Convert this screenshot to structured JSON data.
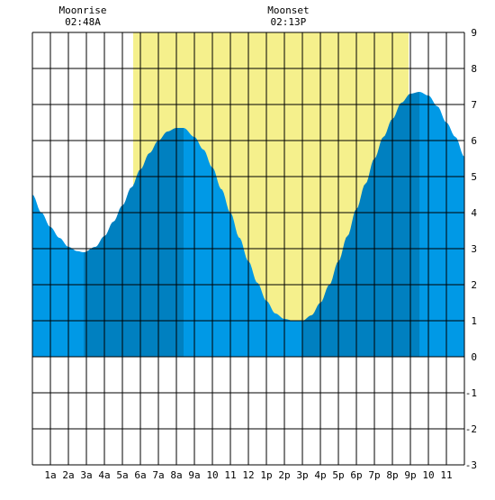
{
  "chart_data": {
    "type": "area",
    "title": "",
    "xlabel": "",
    "ylabel": "",
    "xlim": [
      0,
      24
    ],
    "ylim": [
      -3,
      9
    ],
    "x_tick_labels": [
      "1a",
      "2a",
      "3a",
      "4a",
      "5a",
      "6a",
      "7a",
      "8a",
      "9a",
      "10",
      "11",
      "12",
      "1p",
      "2p",
      "3p",
      "4p",
      "5p",
      "6p",
      "7p",
      "8p",
      "9p",
      "10",
      "11"
    ],
    "y_tick_labels": [
      "-3",
      "-2",
      "-1",
      "0",
      "1",
      "2",
      "3",
      "4",
      "5",
      "6",
      "7",
      "8",
      "9"
    ],
    "grid": true,
    "daylight_hours": [
      5.6,
      20.9
    ],
    "annotations": [
      {
        "label": "Moonrise",
        "time": "02:48A",
        "hour": 2.8
      },
      {
        "label": "Moonset",
        "time": "02:13P",
        "hour": 14.22
      }
    ],
    "tide_extremes": [
      {
        "type": "low",
        "hour": 2.85,
        "height": 2.9
      },
      {
        "type": "high",
        "hour": 8.4,
        "height": 6.35
      },
      {
        "type": "low",
        "hour": 15.0,
        "height": 1.0
      },
      {
        "type": "high",
        "hour": 21.5,
        "height": 7.35
      }
    ],
    "series": [
      {
        "x": [
          0,
          0.5,
          1,
          1.5,
          2,
          2.5,
          2.85,
          3.5,
          4,
          4.5,
          5,
          5.5,
          6,
          6.5,
          7,
          7.5,
          8,
          8.4,
          9,
          9.5,
          10,
          10.5,
          11,
          11.5,
          12,
          12.5,
          13,
          13.5,
          14,
          14.5,
          15,
          15.5,
          16,
          16.5,
          17,
          17.5,
          18,
          18.5,
          19,
          19.5,
          20,
          20.5,
          21,
          21.5,
          22,
          22.5,
          23,
          23.5,
          24
        ],
        "y": [
          4.5,
          4.0,
          3.6,
          3.3,
          3.05,
          2.93,
          2.9,
          3.05,
          3.35,
          3.75,
          4.2,
          4.7,
          5.2,
          5.65,
          6.0,
          6.25,
          6.35,
          6.35,
          6.1,
          5.75,
          5.25,
          4.65,
          4.0,
          3.3,
          2.65,
          2.05,
          1.55,
          1.2,
          1.05,
          1.0,
          1.0,
          1.15,
          1.5,
          2.0,
          2.65,
          3.35,
          4.1,
          4.8,
          5.5,
          6.1,
          6.6,
          7.05,
          7.3,
          7.35,
          7.25,
          6.95,
          6.5,
          6.1,
          5.55
        ]
      }
    ],
    "colors": {
      "daylight": "#f5f08c",
      "tide_light": "#0099e6",
      "tide_dark": "#0080c0",
      "grid": "#000000",
      "background": "#ffffff"
    }
  }
}
